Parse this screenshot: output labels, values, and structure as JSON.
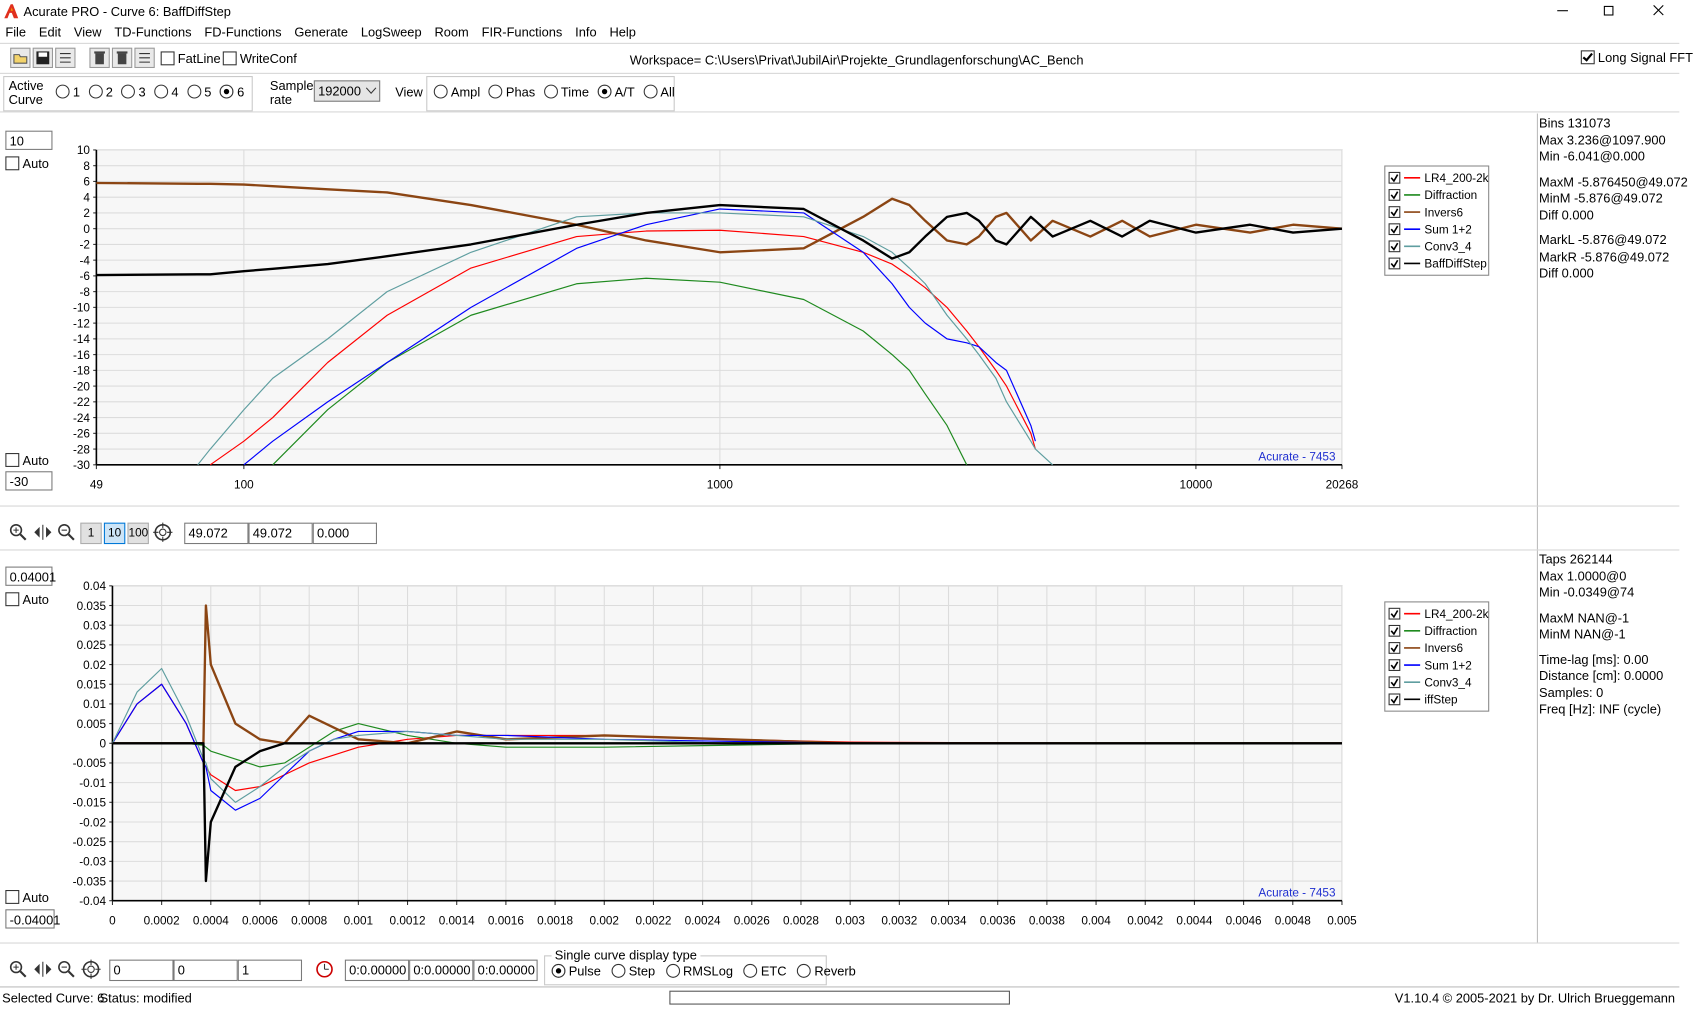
{
  "window": {
    "title": "Acurate PRO - Curve 6: BaffDiffStep"
  },
  "menu": [
    "File",
    "Edit",
    "View",
    "TD-Functions",
    "FD-Functions",
    "Generate",
    "LogSweep",
    "Room",
    "FIR-Functions",
    "Info",
    "Help"
  ],
  "toolbar": {
    "fatline": "FatLine",
    "writeconf": "WriteConf",
    "workspace": "Workspace= C:\\Users\\Privat\\JubilAir\\Projekte_Grundlagenforschung\\AC_Bench",
    "long_fft": "Long Signal FFT"
  },
  "controls": {
    "active_curve": "Active Curve",
    "curves": [
      "1",
      "2",
      "3",
      "4",
      "5",
      "6"
    ],
    "sample_rate_label": "Sample rate",
    "sample_rate": "192000",
    "view_label": "View",
    "views": [
      "Ampl",
      "Phas",
      "Time",
      "A/T",
      "All"
    ]
  },
  "top_panel": {
    "ymax": "10",
    "auto": "Auto",
    "auto2": "Auto",
    "ymin": "-30",
    "info": [
      [
        "Bins 131073",
        "Max 3.236@1097.900",
        "Min -6.041@0.000"
      ],
      [
        "MaxM -5.876450@49.072",
        "MinM -5.876@49.072",
        "Diff 0.000"
      ],
      [
        "MarkL -5.876@49.072",
        "MarkR -5.876@49.072",
        "Diff 0.000"
      ]
    ]
  },
  "zoom_bar": {
    "buttons": [
      "1",
      "10",
      "100"
    ],
    "fields": [
      "49.072",
      "49.072",
      "0.000"
    ]
  },
  "bottom_panel": {
    "ymax": "0.04001",
    "auto": "Auto",
    "auto2": "Auto",
    "ymin": "-0.04001",
    "info": [
      [
        "Taps 262144",
        "Max 1.0000@0",
        "Min -0.0349@74"
      ],
      [
        "MaxM NAN@-1",
        "MinM NAN@-1"
      ],
      [
        "Time-lag [ms]: 0.00",
        "Distance [cm]: 0.0000",
        "Samples:  0",
        "Freq [Hz]: INF (cycle)"
      ]
    ]
  },
  "bottom_bar": {
    "fields": [
      "0",
      "0",
      "1"
    ],
    "times": [
      "0:0.00000",
      "0:0.00000",
      "0:0.00000"
    ],
    "display_type": "Single curve display type",
    "display_options": [
      "Pulse",
      "Step",
      "RMSLog",
      "ETC",
      "Reverb"
    ]
  },
  "status": {
    "curve": "Selected Curve: 6",
    "state": "Status: modified",
    "version": "V1.10.4 © 2005-2021 by Dr. Ulrich Brueggemann"
  },
  "chart_data": [
    {
      "type": "line",
      "log_x": true,
      "grid": true,
      "legend": "right",
      "annotation": "Acurate - 7453",
      "x": [
        49,
        80,
        85,
        100,
        115,
        150,
        200,
        300,
        500,
        700,
        1000,
        1500,
        2000,
        2300,
        2500,
        2700,
        3000,
        3300,
        3500,
        3800,
        4000,
        4500,
        4600,
        5000,
        6000,
        7000,
        8000,
        10000,
        13000,
        16000,
        20268
      ],
      "xlim": [
        49,
        20268
      ],
      "ylim": [
        -30,
        10
      ],
      "xticks": [
        49,
        100,
        1000,
        10000,
        20268
      ],
      "yticks": [
        10,
        8,
        6,
        4,
        2,
        0,
        -2,
        -4,
        -6,
        -8,
        -10,
        -12,
        -14,
        -16,
        -18,
        -20,
        -22,
        -24,
        -26,
        -28,
        -30
      ],
      "series": [
        {
          "name": "LR4_200-2k",
          "color": "#ff0000",
          "values": [
            null,
            null,
            -30,
            -27,
            -24,
            -17,
            -11,
            -5,
            -1,
            -0.3,
            -0.2,
            -1,
            -3,
            -4.5,
            -6,
            -7.5,
            -10,
            -13,
            -15,
            -18,
            -20,
            -26,
            -28,
            null,
            null,
            null,
            null,
            null,
            null,
            null,
            null
          ]
        },
        {
          "name": "Diffraction",
          "color": "#1f8a1f",
          "values": [
            null,
            null,
            null,
            null,
            -30,
            -23,
            -17,
            -11,
            -7,
            -6.3,
            -6.8,
            -9,
            -13,
            -16,
            -18,
            -21,
            -25,
            -30,
            null,
            null,
            null,
            null,
            null,
            null,
            null,
            null,
            null,
            null,
            null,
            null,
            null
          ]
        },
        {
          "name": "Invers6",
          "color": "#8b4513",
          "values": [
            5.8,
            5.7,
            5.7,
            5.6,
            5.4,
            5,
            4.6,
            3,
            0.5,
            -1.5,
            -3,
            -2.5,
            1.5,
            3.8,
            3,
            1,
            -1.5,
            -2,
            -1,
            1.5,
            2,
            -1.5,
            -1,
            1,
            -1,
            1,
            -1,
            0.5,
            -0.5,
            0.5,
            0
          ]
        },
        {
          "name": "Sum 1+2",
          "color": "#0000ff",
          "values": [
            null,
            null,
            null,
            -30,
            -27,
            -22,
            -17,
            -10,
            -2.5,
            0.5,
            2.5,
            2,
            -3,
            -7,
            -10,
            -12,
            -14,
            -14.5,
            -15,
            -17,
            -18,
            -25,
            -27,
            null,
            null,
            null,
            null,
            null,
            null,
            null,
            null
          ]
        },
        {
          "name": "Conv3_4",
          "color": "#5f9ea0",
          "values": [
            null,
            -30,
            -28,
            -23,
            -19,
            -14,
            -8,
            -3,
            1.5,
            2,
            2,
            1.5,
            -1,
            -3,
            -5,
            -7,
            -11,
            -14,
            -16,
            -19,
            -22,
            -27,
            -28,
            -30,
            null,
            null,
            null,
            null,
            null,
            null,
            null
          ]
        },
        {
          "name": "BaffDiffStep",
          "color": "#000000",
          "values": [
            -5.9,
            -5.8,
            -5.8,
            -5.4,
            -5.1,
            -4.5,
            -3.5,
            -2,
            0.5,
            2,
            3,
            2.5,
            -1.5,
            -3.8,
            -3,
            -1,
            1.5,
            2,
            1,
            -1.5,
            -2,
            1.5,
            1,
            -1,
            1,
            -1,
            1,
            -0.5,
            0.5,
            -0.5,
            0
          ]
        }
      ]
    },
    {
      "type": "line",
      "log_x": false,
      "grid": true,
      "legend": "right",
      "annotation": "Acurate - 7453",
      "x": [
        0,
        0.0001,
        0.0002,
        0.0003,
        0.00037,
        0.00038,
        0.0004,
        0.0005,
        0.0006,
        0.0007,
        0.0008,
        0.0009,
        0.001,
        0.0012,
        0.0014,
        0.0016,
        0.002,
        0.0025,
        0.003,
        0.004,
        0.005
      ],
      "xlim": [
        0,
        0.005
      ],
      "ylim": [
        -0.04,
        0.04
      ],
      "xticks": [
        0,
        0.0002,
        0.0004,
        0.0006,
        0.0008,
        0.001,
        0.0012,
        0.0014,
        0.0016,
        0.0018,
        0.002,
        0.0022,
        0.0024,
        0.0026,
        0.0028,
        0.003,
        0.0032,
        0.0034,
        0.0036,
        0.0038,
        0.004,
        0.0042,
        0.0044,
        0.0046,
        0.0048,
        0.005
      ],
      "yticks": [
        0.04,
        0.035,
        0.03,
        0.025,
        0.02,
        0.015,
        0.01,
        0.005,
        0,
        -0.005,
        -0.01,
        -0.015,
        -0.02,
        -0.025,
        -0.03,
        -0.035,
        -0.04
      ],
      "series": [
        {
          "name": "LR4_200-2k",
          "color": "#ff0000",
          "values": [
            0,
            0.01,
            0.015,
            0.005,
            -0.005,
            -0.006,
            -0.008,
            -0.012,
            -0.011,
            -0.008,
            -0.005,
            -0.003,
            -0.001,
            0.001,
            0.002,
            0.002,
            0.002,
            0.001,
            0.0003,
            0,
            0
          ]
        },
        {
          "name": "Diffraction",
          "color": "#1f8a1f",
          "values": [
            0,
            0,
            0,
            0,
            -0.0005,
            -0.001,
            -0.002,
            -0.004,
            -0.006,
            -0.005,
            -0.001,
            0.003,
            0.005,
            0.002,
            0,
            -0.001,
            -0.001,
            -0.0005,
            0,
            0,
            0
          ]
        },
        {
          "name": "Invers6",
          "color": "#8b4513",
          "values": [
            0,
            0,
            0,
            0,
            0,
            0.035,
            0.02,
            0.005,
            0.001,
            0,
            0.007,
            0.004,
            0.001,
            0,
            0.003,
            0.001,
            0.002,
            0.001,
            0,
            0,
            0
          ]
        },
        {
          "name": "Sum 1+2",
          "color": "#0000ff",
          "values": [
            0,
            0.01,
            0.015,
            0.005,
            -0.005,
            -0.006,
            -0.012,
            -0.017,
            -0.014,
            -0.008,
            -0.002,
            0.001,
            0.003,
            0.003,
            0.002,
            0.002,
            0.001,
            0.0005,
            0,
            0,
            0
          ]
        },
        {
          "name": "Conv3_4",
          "color": "#5f9ea0",
          "values": [
            0,
            0.013,
            0.019,
            0.007,
            -0.004,
            -0.005,
            -0.009,
            -0.015,
            -0.011,
            -0.006,
            -0.002,
            0.001,
            0.002,
            0.003,
            0.002,
            0.001,
            0.001,
            0,
            0,
            0,
            0
          ]
        },
        {
          "name": "iffStep",
          "color": "#000000",
          "values": [
            0,
            0,
            0,
            0,
            0,
            -0.035,
            -0.02,
            -0.006,
            -0.002,
            0,
            0,
            0,
            0,
            0,
            0,
            0,
            0,
            0,
            0,
            0,
            0
          ]
        }
      ]
    }
  ]
}
